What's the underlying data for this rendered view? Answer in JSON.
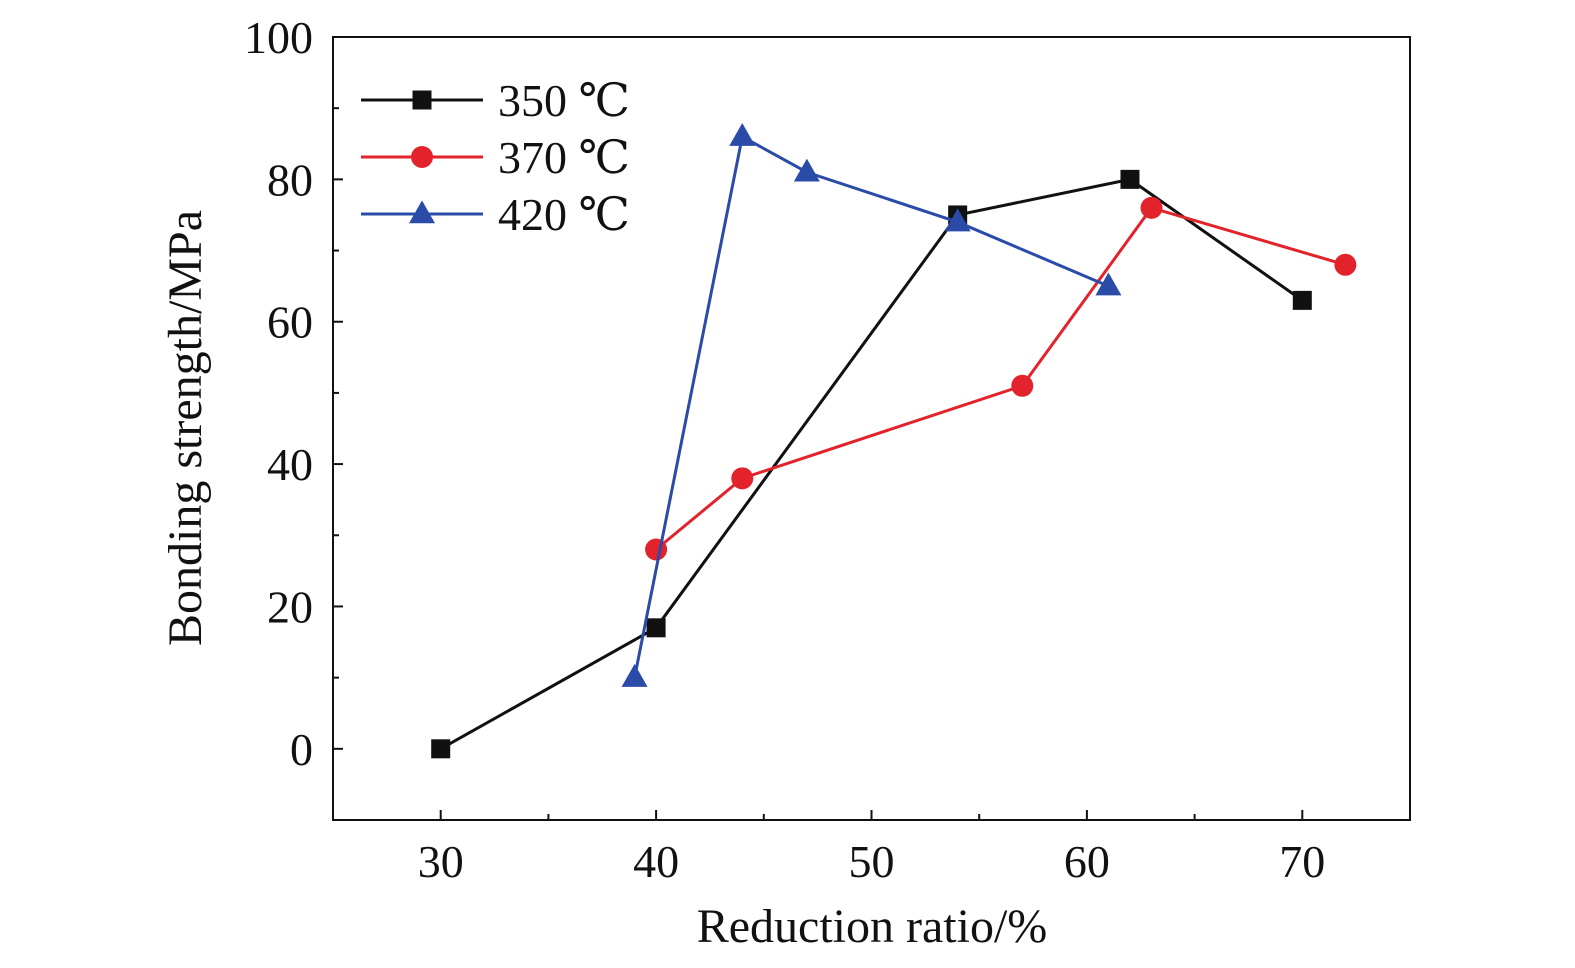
{
  "chart_data": {
    "type": "line",
    "xlabel": "Reduction ratio/%",
    "ylabel": "Bonding strength/MPa",
    "xlim": [
      25,
      75
    ],
    "ylim": [
      -10,
      100
    ],
    "xticks": [
      30,
      40,
      50,
      60,
      70
    ],
    "yticks": [
      0,
      20,
      40,
      60,
      80,
      100
    ],
    "grid": false,
    "legend_position": "top-left",
    "series": [
      {
        "name": "350 ℃",
        "color": "#111111",
        "marker": "square",
        "x": [
          30,
          40,
          54,
          62,
          70
        ],
        "y": [
          0,
          17,
          75,
          80,
          63
        ]
      },
      {
        "name": "370 ℃",
        "color": "#e3232c",
        "marker": "circle",
        "x": [
          40,
          44,
          57,
          63,
          72
        ],
        "y": [
          28,
          38,
          51,
          76,
          68
        ]
      },
      {
        "name": "420 ℃",
        "color": "#2b4ba8",
        "marker": "triangle",
        "x": [
          39,
          44,
          47,
          54,
          61
        ],
        "y": [
          10,
          86,
          81,
          74,
          65
        ]
      }
    ]
  }
}
